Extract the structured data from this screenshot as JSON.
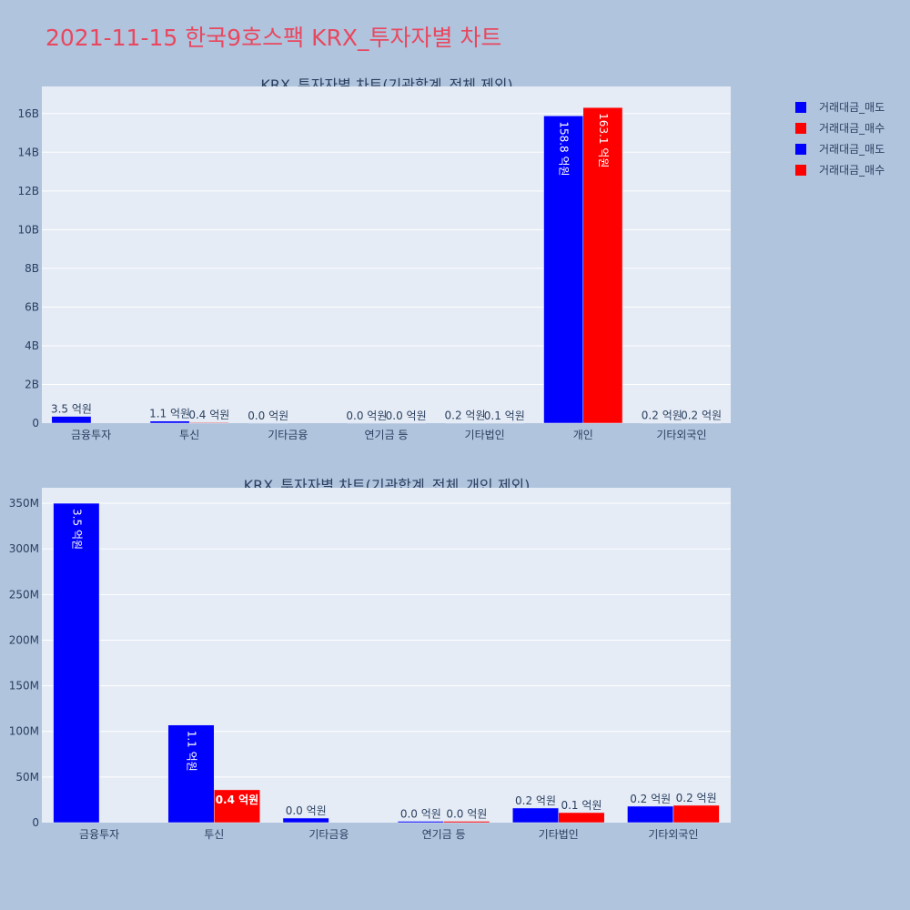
{
  "page_title": "2021-11-15 한국9호스팩 KRX_투자자별 차트",
  "legend": [
    {
      "label": "거래대금_매도",
      "color": "#0000ff"
    },
    {
      "label": "거래대금_매수",
      "color": "#ff0000"
    },
    {
      "label": "거래대금_매도",
      "color": "#0000ff"
    },
    {
      "label": "거래대금_매수",
      "color": "#ff0000"
    }
  ],
  "colors": {
    "sell": "#0000ff",
    "buy": "#ff0000",
    "plot_bg": "#e5ecf6",
    "page_bg": "#b0c4de"
  },
  "chart_data": [
    {
      "type": "bar",
      "title": "KRX_투자자별 차트(기관합계_전체 제외)",
      "categories": [
        "금융투자",
        "투신",
        "기타금융",
        "연기금 등",
        "기타법인",
        "개인",
        "기타외국인"
      ],
      "ylim": [
        0,
        17400000000
      ],
      "yticks": [
        0,
        2000000000,
        4000000000,
        6000000000,
        8000000000,
        10000000000,
        12000000000,
        14000000000,
        16000000000
      ],
      "ytick_labels": [
        "0",
        "2B",
        "4B",
        "6B",
        "8B",
        "10B",
        "12B",
        "14B",
        "16B"
      ],
      "grid": true,
      "series": [
        {
          "name": "거래대금_매도",
          "color": "#0000ff",
          "values": [
            350000000,
            107000000,
            5000000,
            1500000,
            16000000,
            15880000000,
            18000000
          ],
          "labels": [
            "3.5 억원",
            "1.1 억원",
            "0.0 억원",
            "0.0 억원",
            "0.2 억원",
            "158.8 억원",
            "0.2 억원"
          ]
        },
        {
          "name": "거래대금_매수",
          "color": "#ff0000",
          "values": [
            0,
            36000000,
            0,
            1500000,
            11000000,
            16310000000,
            19000000
          ],
          "labels": [
            "",
            "0.4 억원",
            "",
            "0.0 억원",
            "0.1 억원",
            "163.1 억원",
            "0.2 억원"
          ]
        }
      ]
    },
    {
      "type": "bar",
      "title": "KRX_투자자별 차트(기관합계_전체_개인 제외)",
      "categories": [
        "금융투자",
        "투신",
        "기타금융",
        "연기금 등",
        "기타법인",
        "기타외국인"
      ],
      "ylim": [
        0,
        367000000
      ],
      "yticks": [
        0,
        50000000,
        100000000,
        150000000,
        200000000,
        250000000,
        300000000,
        350000000
      ],
      "ytick_labels": [
        "0",
        "50M",
        "100M",
        "150M",
        "200M",
        "250M",
        "300M",
        "350M"
      ],
      "grid": true,
      "series": [
        {
          "name": "거래대금_매도",
          "color": "#0000ff",
          "values": [
            350000000,
            107000000,
            5000000,
            1500000,
            16000000,
            18000000
          ],
          "labels": [
            "3.5 억원",
            "1.1 억원",
            "0.0 억원",
            "0.0 억원",
            "0.2 억원",
            "0.2 억원"
          ]
        },
        {
          "name": "거래대금_매수",
          "color": "#ff0000",
          "values": [
            0,
            36000000,
            0,
            1500000,
            11000000,
            19000000
          ],
          "labels": [
            "",
            "0.4 억원",
            "",
            "0.0 억원",
            "0.1 억원",
            "0.2 억원"
          ]
        }
      ]
    }
  ]
}
